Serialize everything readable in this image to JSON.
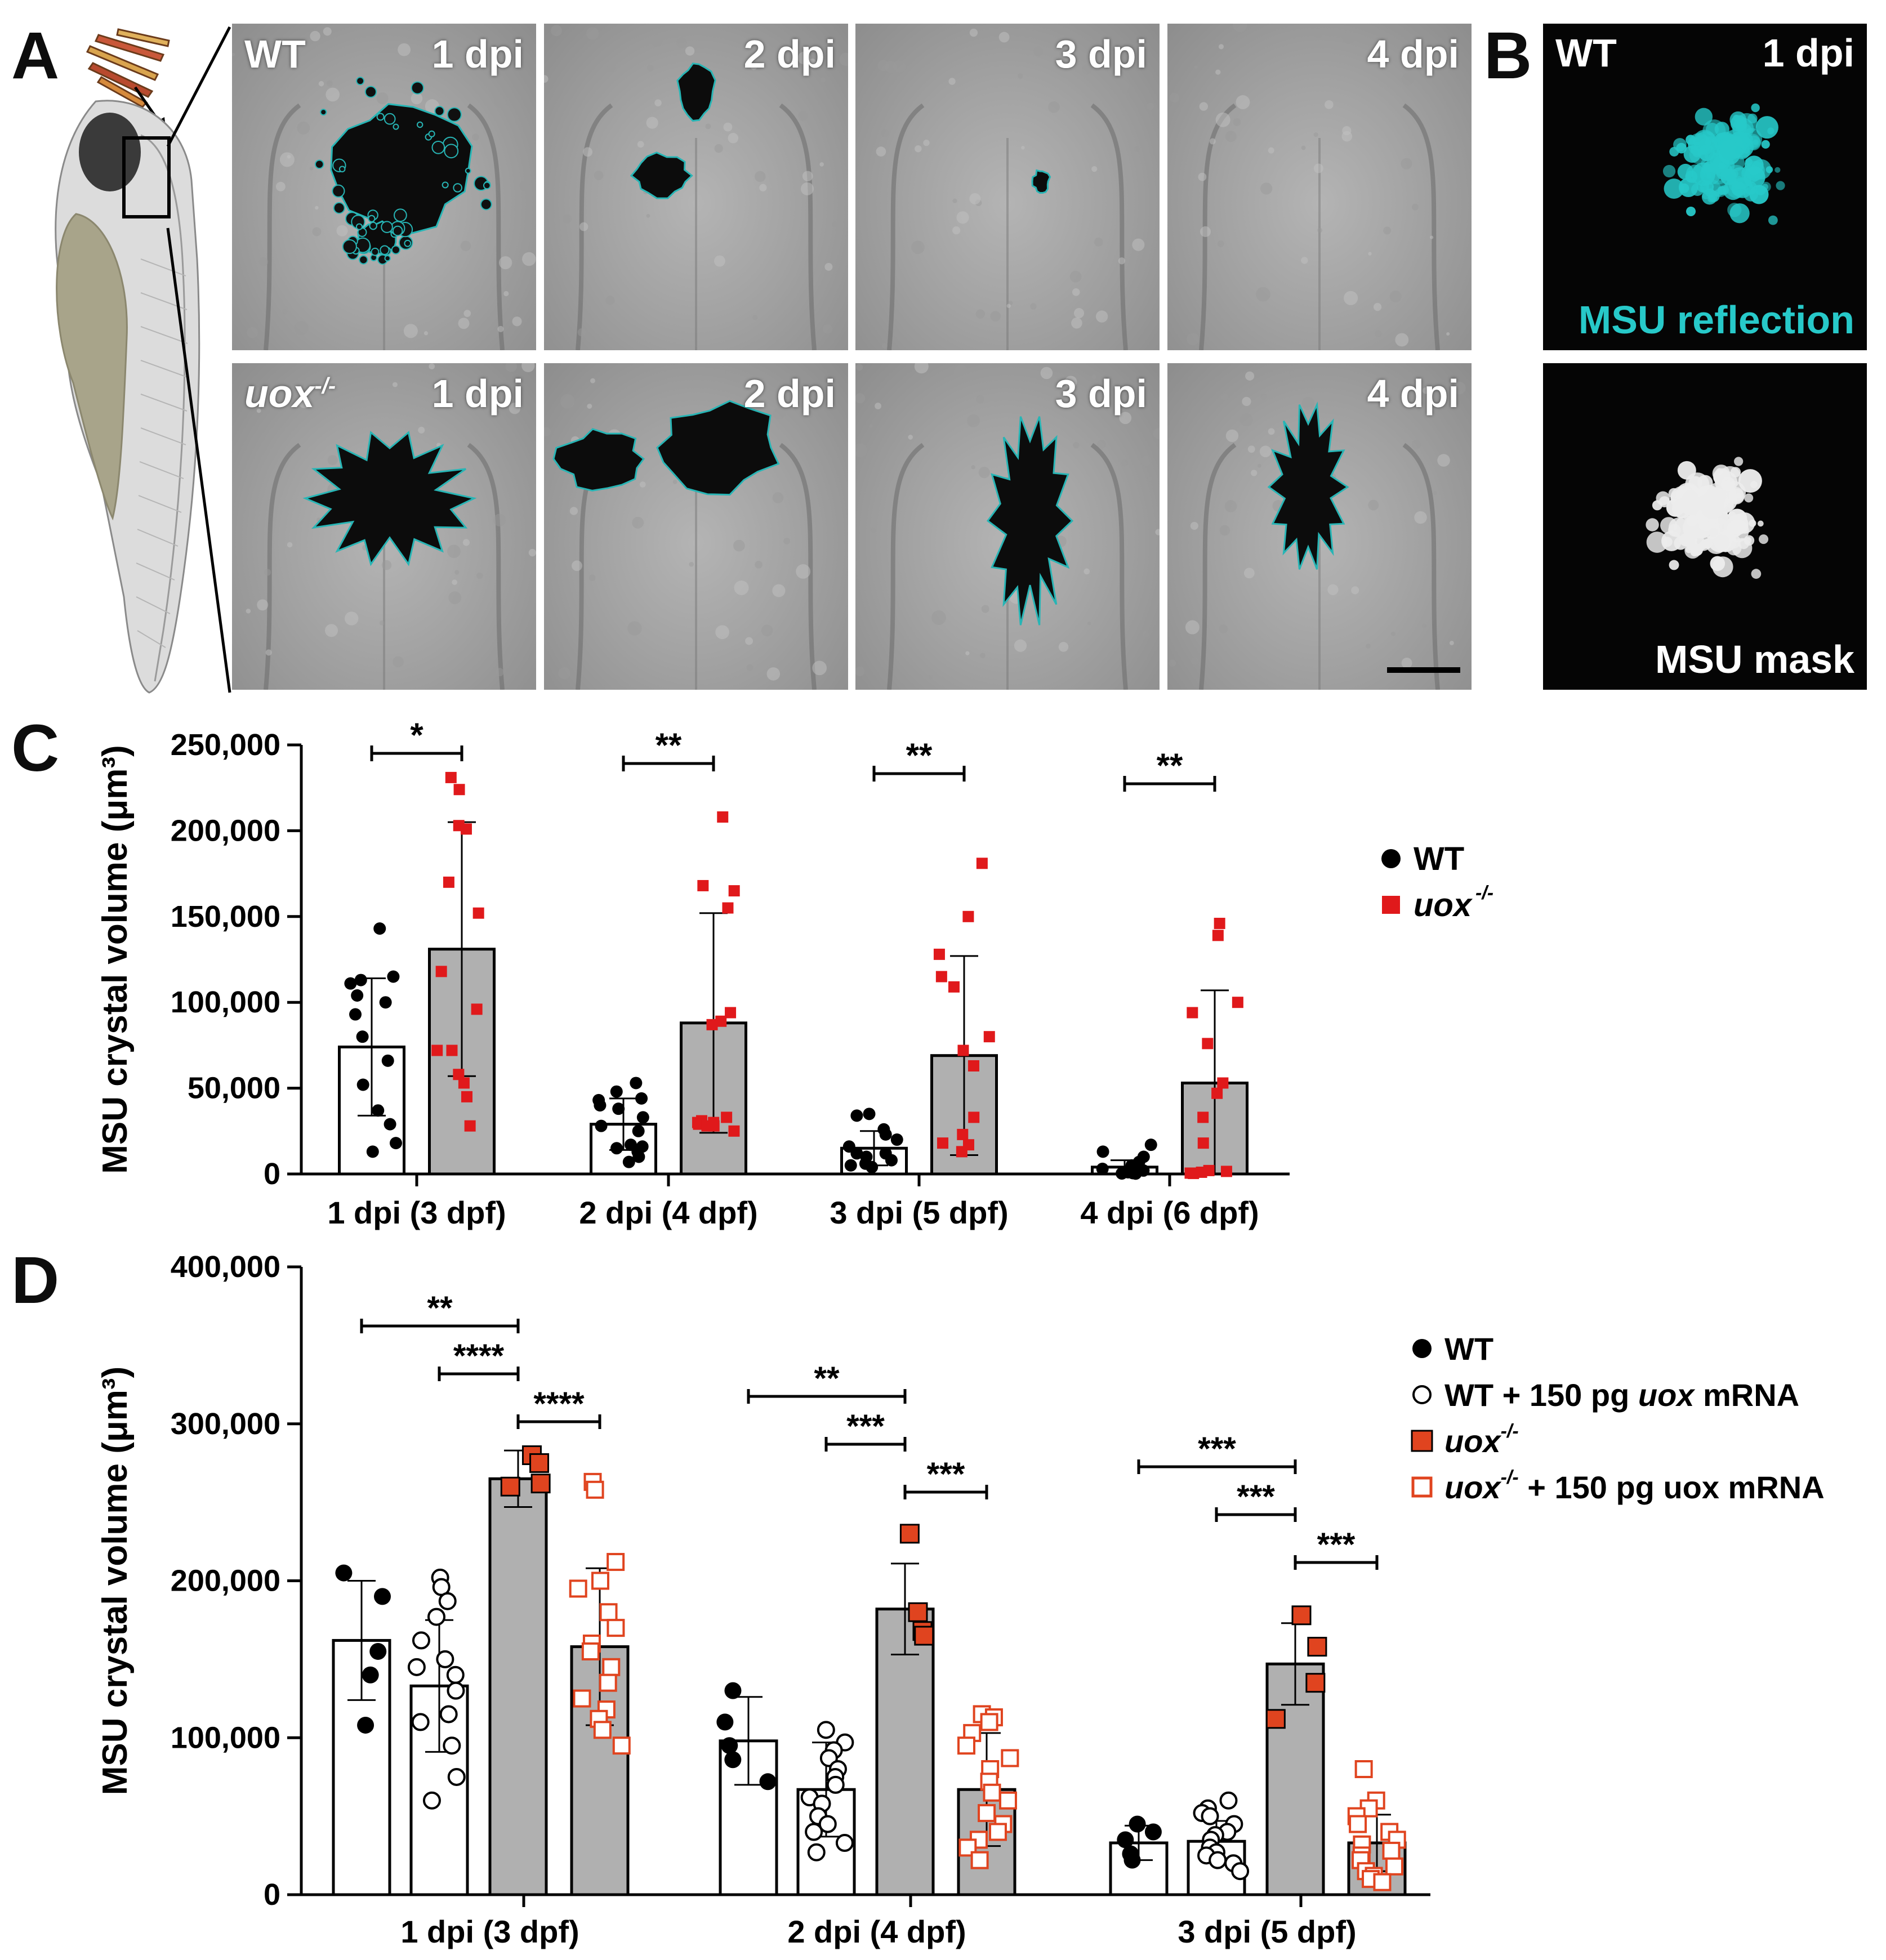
{
  "panels": {
    "A": "A",
    "B": "B",
    "C": "C",
    "D": "D"
  },
  "panel_a": {
    "row1_genotype": "WT",
    "row2_genotype": "uox",
    "row2_genotype_sup": "-/-",
    "timepoints": [
      "1 dpi",
      "2 dpi",
      "3 dpi",
      "4 dpi"
    ]
  },
  "panel_b": {
    "genotype": "WT",
    "timepoint": "1 dpi",
    "top_label": "MSU reflection",
    "bottom_label": "MSU mask",
    "reflection_color": "#27c9c9"
  },
  "colors": {
    "wt": "#000000",
    "uox": "#e0191b",
    "bar_wt": "#ffffff",
    "bar_uox": "#b0b0b0",
    "outline_cyan": "#27b5b5",
    "uox_filled": "#e0441f",
    "uox_open": "#e0441f"
  },
  "chart_data": [
    {
      "panel": "C",
      "type": "bar",
      "ylabel": "MSU crystal volume (μm³)",
      "ylim": [
        0,
        250000
      ],
      "yticks": [
        "0",
        "50,000",
        "100,000",
        "150,000",
        "200,000",
        "250,000"
      ],
      "ytick_values": [
        0,
        50000,
        100000,
        150000,
        200000,
        250000
      ],
      "categories": [
        "1 dpi (3 dpf)",
        "2 dpi (4 dpf)",
        "3 dpi (5 dpf)",
        "4 dpi (6 dpf)"
      ],
      "legend": {
        "position": "right",
        "items": [
          "WT",
          "uox"
        ],
        "sup": "-/-"
      },
      "series": [
        {
          "name": "WT",
          "values": [
            74000,
            29000,
            15000,
            4000
          ],
          "sd": [
            40000,
            15000,
            10000,
            4000
          ],
          "points": [
            [
              143000,
              115000,
              113000,
              111000,
              104000,
              100000,
              93000,
              80000,
              66000,
              52000,
              37000,
              29000,
              18000,
              13000
            ],
            [
              53000,
              48000,
              44000,
              43000,
              40000,
              38000,
              33000,
              28000,
              25000,
              17000,
              16000,
              15000,
              13000,
              10000,
              7000
            ],
            [
              35000,
              34000,
              26000,
              23000,
              20000,
              16000,
              12000,
              12000,
              10000,
              8000,
              6000,
              5000,
              4000
            ],
            [
              17000,
              13000,
              10000,
              7000,
              5000,
              3000,
              2000,
              1500,
              1000,
              500,
              300,
              200
            ]
          ]
        },
        {
          "name": "uox",
          "values": [
            131000,
            88000,
            69000,
            53000
          ],
          "sd": [
            74000,
            64000,
            58000,
            54000
          ],
          "points": [
            [
              231000,
              224000,
              203000,
              201000,
              170000,
              152000,
              118000,
              96000,
              72000,
              72000,
              58000,
              53000,
              45000,
              28000
            ],
            [
              208000,
              168000,
              165000,
              155000,
              94000,
              89000,
              87000,
              33000,
              31000,
              30000,
              30000,
              29000,
              28000,
              28000,
              25000
            ],
            [
              181000,
              150000,
              128000,
              115000,
              109000,
              80000,
              72000,
              63000,
              33000,
              23000,
              18000,
              17000,
              13000
            ],
            [
              146000,
              139000,
              100000,
              94000,
              76000,
              53000,
              47000,
              33000,
              18000,
              2000,
              1500,
              1000,
              500,
              300
            ]
          ]
        }
      ],
      "significance": [
        {
          "category": 0,
          "label": "*"
        },
        {
          "category": 1,
          "label": "**"
        },
        {
          "category": 2,
          "label": "**"
        },
        {
          "category": 3,
          "label": "**"
        }
      ]
    },
    {
      "panel": "D",
      "type": "bar",
      "ylabel": "MSU crystal volume (μm³)",
      "ylim": [
        0,
        400000
      ],
      "yticks": [
        "0",
        "100,000",
        "200,000",
        "300,000",
        "400,000"
      ],
      "ytick_values": [
        0,
        100000,
        200000,
        300000,
        400000
      ],
      "categories": [
        "1 dpi (3 dpf)",
        "2 dpi (4 dpf)",
        "3 dpi (5 dpf)"
      ],
      "legend": {
        "position": "right",
        "items": [
          {
            "pre": "WT",
            "it": "",
            "sup": "",
            "post": ""
          },
          {
            "pre": "WT + 150 pg ",
            "it": "uox",
            "sup": "",
            "post": " mRNA"
          },
          {
            "pre": "",
            "it": "uox",
            "sup": "-/-",
            "post": ""
          },
          {
            "pre": "",
            "it": "uox",
            "sup": "-/-",
            "post": " + 150 pg uox mRNA"
          }
        ]
      },
      "series": [
        {
          "name": "WT",
          "values": [
            162000,
            98000,
            33000
          ],
          "sd": [
            38000,
            28000,
            11000
          ],
          "points": [
            [
              205000,
              190000,
              155000,
              140000,
              108000
            ],
            [
              130000,
              110000,
              95000,
              86000,
              72000
            ],
            [
              45000,
              40000,
              35000,
              26000,
              22000
            ]
          ]
        },
        {
          "name": "WT + 150 pg uox mRNA",
          "values": [
            133000,
            67000,
            34000
          ],
          "sd": [
            42000,
            30000,
            13000
          ],
          "points": [
            [
              202000,
              196000,
              187000,
              177000,
              162000,
              150000,
              145000,
              140000,
              130000,
              115000,
              110000,
              95000,
              75000,
              60000
            ],
            [
              105000,
              97000,
              92000,
              87000,
              80000,
              75000,
              70000,
              62000,
              58000,
              50000,
              45000,
              40000,
              33000,
              27000
            ],
            [
              60000,
              55000,
              52000,
              50000,
              45000,
              40000,
              38000,
              35000,
              30000,
              27000,
              25000,
              22000,
              20000,
              15000
            ]
          ]
        },
        {
          "name": "uox-/-",
          "values": [
            265000,
            182000,
            147000
          ],
          "sd": [
            18000,
            29000,
            26000
          ],
          "points": [
            [
              280000,
              275000,
              262000,
              260000
            ],
            [
              230000,
              180000,
              168000,
              165000
            ],
            [
              178000,
              158000,
              135000,
              112000
            ]
          ]
        },
        {
          "name": "uox-/- + 150 pg uox mRNA",
          "values": [
            158000,
            67000,
            33000
          ],
          "sd": [
            50000,
            36000,
            18000
          ],
          "points": [
            [
              263000,
              258000,
              212000,
              200000,
              195000,
              180000,
              170000,
              160000,
              155000,
              145000,
              135000,
              125000,
              118000,
              112000,
              105000,
              95000
            ],
            [
              115000,
              113000,
              110000,
              103000,
              95000,
              87000,
              80000,
              72000,
              65000,
              60000,
              52000,
              45000,
              40000,
              35000,
              30000,
              22000
            ],
            [
              80000,
              60000,
              55000,
              50000,
              45000,
              40000,
              35000,
              32000,
              28000,
              25000,
              22000,
              18000,
              15000,
              12000,
              10000,
              8000
            ]
          ]
        }
      ],
      "significance": [
        {
          "category": 0,
          "from": 0,
          "to": 2,
          "label": "**"
        },
        {
          "category": 0,
          "from": 1,
          "to": 2,
          "label": "****"
        },
        {
          "category": 0,
          "from": 2,
          "to": 3,
          "label": "****"
        },
        {
          "category": 1,
          "from": 0,
          "to": 2,
          "label": "**"
        },
        {
          "category": 1,
          "from": 1,
          "to": 2,
          "label": "***"
        },
        {
          "category": 1,
          "from": 2,
          "to": 3,
          "label": "***"
        },
        {
          "category": 2,
          "from": 0,
          "to": 2,
          "label": "***"
        },
        {
          "category": 2,
          "from": 1,
          "to": 2,
          "label": "***"
        },
        {
          "category": 2,
          "from": 2,
          "to": 3,
          "label": "***"
        }
      ]
    }
  ]
}
